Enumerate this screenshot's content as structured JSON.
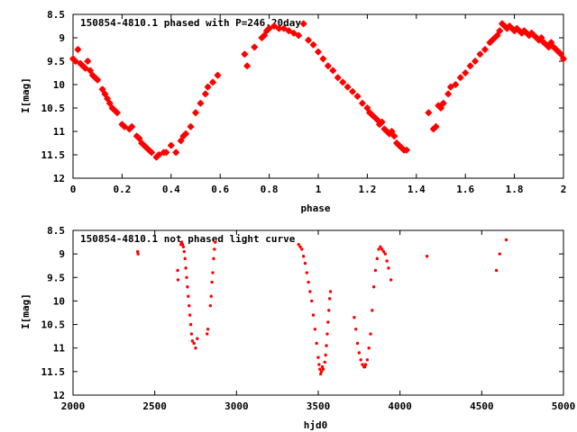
{
  "chart_data": [
    {
      "type": "scatter",
      "title": "150854-4810.1 phased with P=246.20day",
      "xlabel": "phase",
      "ylabel": "I[mag]",
      "xlim": [
        0,
        2
      ],
      "ylim": [
        12,
        8.5
      ],
      "y_inverted": true,
      "xticks": [
        "0",
        "0.2",
        "0.4",
        "0.6",
        "0.8",
        "1",
        "1.2",
        "1.4",
        "1.6",
        "1.8",
        "2"
      ],
      "yticks": [
        "8.5",
        "9",
        "9.5",
        "10",
        "10.5",
        "11",
        "11.5",
        "12"
      ],
      "marker_color": "#ff0000",
      "marker": "star",
      "grid": false,
      "series": [
        {
          "points": [
            [
              0.0,
              9.45
            ],
            [
              0.01,
              9.5
            ],
            [
              0.02,
              9.25
            ],
            [
              0.03,
              9.55
            ],
            [
              0.04,
              9.6
            ],
            [
              0.05,
              9.65
            ],
            [
              0.06,
              9.5
            ],
            [
              0.07,
              9.7
            ],
            [
              0.08,
              9.8
            ],
            [
              0.09,
              9.85
            ],
            [
              0.1,
              9.9
            ],
            [
              0.12,
              10.1
            ],
            [
              0.13,
              10.2
            ],
            [
              0.14,
              10.3
            ],
            [
              0.15,
              10.4
            ],
            [
              0.16,
              10.5
            ],
            [
              0.17,
              10.55
            ],
            [
              0.18,
              10.6
            ],
            [
              0.2,
              10.85
            ],
            [
              0.21,
              10.9
            ],
            [
              0.23,
              10.95
            ],
            [
              0.24,
              10.9
            ],
            [
              0.26,
              11.1
            ],
            [
              0.27,
              11.15
            ],
            [
              0.28,
              11.25
            ],
            [
              0.29,
              11.3
            ],
            [
              0.3,
              11.35
            ],
            [
              0.31,
              11.4
            ],
            [
              0.32,
              11.45
            ],
            [
              0.34,
              11.55
            ],
            [
              0.35,
              11.5
            ],
            [
              0.37,
              11.45
            ],
            [
              0.38,
              11.45
            ],
            [
              0.4,
              11.3
            ],
            [
              0.42,
              11.45
            ],
            [
              0.44,
              11.2
            ],
            [
              0.45,
              11.1
            ],
            [
              0.46,
              11.05
            ],
            [
              0.48,
              10.9
            ],
            [
              0.5,
              10.6
            ],
            [
              0.52,
              10.4
            ],
            [
              0.54,
              10.2
            ],
            [
              0.55,
              10.05
            ],
            [
              0.57,
              9.95
            ],
            [
              0.59,
              9.8
            ],
            [
              0.7,
              9.35
            ],
            [
              0.71,
              9.6
            ],
            [
              0.74,
              9.2
            ],
            [
              0.77,
              9.0
            ],
            [
              0.78,
              8.95
            ],
            [
              0.79,
              8.85
            ],
            [
              0.8,
              8.8
            ],
            [
              0.82,
              8.75
            ],
            [
              0.84,
              8.8
            ],
            [
              0.86,
              8.8
            ],
            [
              0.88,
              8.85
            ],
            [
              0.9,
              8.9
            ],
            [
              0.92,
              8.95
            ],
            [
              0.94,
              8.7
            ],
            [
              0.96,
              9.05
            ],
            [
              0.98,
              9.15
            ],
            [
              1.0,
              9.3
            ],
            [
              1.02,
              9.45
            ],
            [
              1.04,
              9.6
            ],
            [
              1.06,
              9.7
            ],
            [
              1.08,
              9.85
            ],
            [
              1.1,
              9.95
            ],
            [
              1.12,
              10.05
            ],
            [
              1.14,
              10.15
            ],
            [
              1.16,
              10.25
            ],
            [
              1.18,
              10.4
            ],
            [
              1.2,
              10.5
            ],
            [
              1.21,
              10.6
            ],
            [
              1.22,
              10.65
            ],
            [
              1.23,
              10.7
            ],
            [
              1.24,
              10.75
            ],
            [
              1.25,
              10.85
            ],
            [
              1.26,
              10.8
            ],
            [
              1.27,
              10.95
            ],
            [
              1.28,
              11.0
            ],
            [
              1.29,
              11.05
            ],
            [
              1.3,
              11.0
            ],
            [
              1.31,
              11.1
            ],
            [
              1.32,
              11.25
            ],
            [
              1.33,
              11.3
            ],
            [
              1.34,
              11.35
            ],
            [
              1.35,
              11.4
            ],
            [
              1.36,
              11.4
            ],
            [
              1.45,
              10.6
            ],
            [
              1.47,
              10.95
            ],
            [
              1.48,
              10.9
            ],
            [
              1.49,
              10.45
            ],
            [
              1.5,
              10.5
            ],
            [
              1.51,
              10.4
            ],
            [
              1.53,
              10.2
            ],
            [
              1.54,
              10.05
            ],
            [
              1.56,
              10.0
            ],
            [
              1.58,
              9.85
            ],
            [
              1.6,
              9.75
            ],
            [
              1.62,
              9.6
            ],
            [
              1.64,
              9.5
            ],
            [
              1.66,
              9.35
            ],
            [
              1.68,
              9.25
            ],
            [
              1.7,
              9.1
            ],
            [
              1.71,
              9.05
            ],
            [
              1.72,
              9.0
            ],
            [
              1.73,
              8.95
            ],
            [
              1.74,
              8.85
            ],
            [
              1.75,
              8.7
            ],
            [
              1.76,
              8.75
            ],
            [
              1.77,
              8.8
            ],
            [
              1.78,
              8.75
            ],
            [
              1.79,
              8.8
            ],
            [
              1.8,
              8.85
            ],
            [
              1.81,
              8.8
            ],
            [
              1.82,
              8.85
            ],
            [
              1.83,
              8.9
            ],
            [
              1.84,
              8.85
            ],
            [
              1.85,
              8.9
            ],
            [
              1.86,
              8.95
            ],
            [
              1.87,
              8.9
            ],
            [
              1.88,
              8.95
            ],
            [
              1.89,
              9.0
            ],
            [
              1.9,
              9.05
            ],
            [
              1.91,
              9.0
            ],
            [
              1.92,
              9.1
            ],
            [
              1.93,
              9.15
            ],
            [
              1.94,
              9.2
            ],
            [
              1.95,
              9.1
            ],
            [
              1.96,
              9.2
            ],
            [
              1.97,
              9.25
            ],
            [
              1.98,
              9.3
            ],
            [
              1.99,
              9.35
            ],
            [
              2.0,
              9.45
            ]
          ]
        }
      ]
    },
    {
      "type": "scatter",
      "title": "150854-4810.1 not phased light curve",
      "xlabel": "hjd0",
      "ylabel": "I[mag]",
      "xlim": [
        2000,
        5000
      ],
      "ylim": [
        12,
        8.5
      ],
      "y_inverted": true,
      "xticks": [
        "2000",
        "2500",
        "3000",
        "3500",
        "4000",
        "4500",
        "5000"
      ],
      "yticks": [
        "8.5",
        "9",
        "9.5",
        "10",
        "10.5",
        "11",
        "11.5",
        "12"
      ],
      "marker_color": "#ff0000",
      "marker": "dot",
      "grid": false,
      "series": [
        {
          "points": [
            [
              2395,
              8.95
            ],
            [
              2398,
              9.0
            ],
            [
              2640,
              9.35
            ],
            [
              2642,
              9.55
            ],
            [
              2660,
              8.8
            ],
            [
              2665,
              8.75
            ],
            [
              2670,
              8.8
            ],
            [
              2675,
              8.85
            ],
            [
              2680,
              8.95
            ],
            [
              2685,
              9.1
            ],
            [
              2690,
              9.3
            ],
            [
              2695,
              9.5
            ],
            [
              2700,
              9.7
            ],
            [
              2705,
              9.9
            ],
            [
              2710,
              10.1
            ],
            [
              2715,
              10.3
            ],
            [
              2720,
              10.5
            ],
            [
              2725,
              10.7
            ],
            [
              2730,
              10.85
            ],
            [
              2740,
              10.9
            ],
            [
              2750,
              11.0
            ],
            [
              2760,
              10.8
            ],
            [
              2820,
              10.7
            ],
            [
              2825,
              10.6
            ],
            [
              2840,
              10.1
            ],
            [
              2845,
              9.9
            ],
            [
              2850,
              9.6
            ],
            [
              2855,
              9.4
            ],
            [
              2860,
              9.1
            ],
            [
              2865,
              8.9
            ],
            [
              2870,
              8.75
            ],
            [
              3380,
              8.8
            ],
            [
              3390,
              8.85
            ],
            [
              3400,
              8.9
            ],
            [
              3410,
              9.05
            ],
            [
              3420,
              9.2
            ],
            [
              3430,
              9.4
            ],
            [
              3440,
              9.6
            ],
            [
              3450,
              9.8
            ],
            [
              3460,
              10.0
            ],
            [
              3470,
              10.3
            ],
            [
              3480,
              10.6
            ],
            [
              3490,
              10.9
            ],
            [
              3500,
              11.2
            ],
            [
              3505,
              11.35
            ],
            [
              3510,
              11.45
            ],
            [
              3515,
              11.55
            ],
            [
              3520,
              11.5
            ],
            [
              3525,
              11.4
            ],
            [
              3530,
              11.45
            ],
            [
              3540,
              11.3
            ],
            [
              3545,
              11.15
            ],
            [
              3550,
              10.95
            ],
            [
              3555,
              10.7
            ],
            [
              3560,
              10.45
            ],
            [
              3565,
              10.2
            ],
            [
              3570,
              9.95
            ],
            [
              3575,
              9.8
            ],
            [
              3720,
              10.35
            ],
            [
              3730,
              10.6
            ],
            [
              3740,
              10.9
            ],
            [
              3750,
              11.1
            ],
            [
              3760,
              11.25
            ],
            [
              3770,
              11.35
            ],
            [
              3780,
              11.4
            ],
            [
              3785,
              11.4
            ],
            [
              3790,
              11.35
            ],
            [
              3800,
              11.25
            ],
            [
              3810,
              11.0
            ],
            [
              3820,
              10.7
            ],
            [
              3830,
              10.2
            ],
            [
              3840,
              9.7
            ],
            [
              3850,
              9.35
            ],
            [
              3860,
              9.1
            ],
            [
              3870,
              8.9
            ],
            [
              3880,
              8.85
            ],
            [
              3890,
              8.9
            ],
            [
              3900,
              8.95
            ],
            [
              3910,
              9.0
            ],
            [
              3920,
              9.15
            ],
            [
              3930,
              9.3
            ],
            [
              3945,
              9.55
            ],
            [
              4165,
              9.05
            ],
            [
              4590,
              9.35
            ],
            [
              4610,
              9.0
            ],
            [
              4650,
              8.7
            ]
          ]
        }
      ]
    }
  ]
}
